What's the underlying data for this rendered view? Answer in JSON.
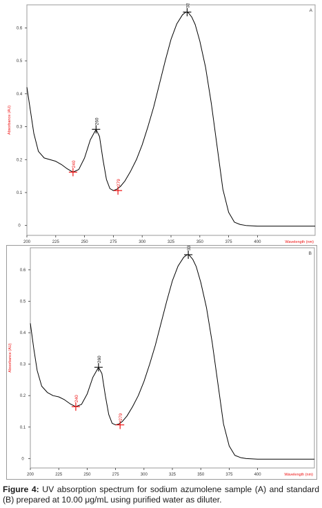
{
  "chart_data": [
    {
      "type": "line",
      "panel_label": "A",
      "xlabel": "Wavelength (nm)",
      "ylabel": "Absorbance (AU)",
      "xlim": [
        200,
        450
      ],
      "ylim": [
        -0.03,
        0.67
      ],
      "x_ticks": [
        200,
        225,
        250,
        275,
        300,
        325,
        350,
        375,
        400
      ],
      "x_tick_labels": [
        "200",
        "225",
        "250",
        "275",
        "300",
        "325",
        "350",
        "375",
        "400"
      ],
      "y_ticks": [
        0,
        0.1,
        0.2,
        0.3,
        0.4,
        0.5,
        0.6
      ],
      "y_tick_labels": [
        "0",
        "0.1",
        "0.2",
        "0.3",
        "0.4",
        "0.5",
        "0.6"
      ],
      "series": [
        {
          "color": "#000000",
          "x": [
            200,
            203,
            206,
            210,
            215,
            220,
            225,
            230,
            235,
            240,
            245,
            250,
            255,
            260,
            263,
            266,
            269,
            272,
            275,
            278,
            281,
            285,
            290,
            295,
            300,
            305,
            310,
            315,
            320,
            325,
            330,
            335,
            338,
            340,
            343,
            346,
            350,
            355,
            360,
            365,
            370,
            375,
            380,
            385,
            390,
            400,
            420,
            450
          ],
          "y": [
            0.42,
            0.35,
            0.28,
            0.225,
            0.205,
            0.2,
            0.195,
            0.185,
            0.172,
            0.162,
            0.17,
            0.205,
            0.26,
            0.292,
            0.27,
            0.2,
            0.14,
            0.112,
            0.106,
            0.11,
            0.118,
            0.135,
            0.165,
            0.2,
            0.245,
            0.3,
            0.36,
            0.43,
            0.5,
            0.565,
            0.612,
            0.64,
            0.648,
            0.646,
            0.633,
            0.61,
            0.56,
            0.48,
            0.37,
            0.24,
            0.11,
            0.04,
            0.01,
            0.003,
            0.0,
            -0.002,
            -0.002,
            -0.002
          ]
        }
      ],
      "peaks": [
        {
          "x": 240,
          "y": 0.162,
          "label": "240",
          "color": "#ee1111"
        },
        {
          "x": 260,
          "y": 0.292,
          "label": "260",
          "color": "#111111"
        },
        {
          "x": 279,
          "y": 0.106,
          "label": "279",
          "color": "#ee1111"
        },
        {
          "x": 339,
          "y": 0.648,
          "label": "339",
          "color": "#111111"
        }
      ]
    },
    {
      "type": "line",
      "panel_label": "B",
      "xlabel": "Wavelength (nm)",
      "ylabel": "Absorbance (AU)",
      "xlim": [
        200,
        450
      ],
      "ylim": [
        -0.03,
        0.67
      ],
      "x_ticks": [
        200,
        225,
        250,
        275,
        300,
        325,
        350,
        375,
        400
      ],
      "x_tick_labels": [
        "200",
        "225",
        "250",
        "275",
        "300",
        "325",
        "350",
        "375",
        "400"
      ],
      "y_ticks": [
        0,
        0.1,
        0.2,
        0.3,
        0.4,
        0.5,
        0.6
      ],
      "y_tick_labels": [
        "0",
        "0.1",
        "0.2",
        "0.3",
        "0.4",
        "0.5",
        "0.6"
      ],
      "series": [
        {
          "color": "#000000",
          "x": [
            200,
            203,
            206,
            210,
            215,
            220,
            225,
            230,
            235,
            240,
            245,
            250,
            255,
            260,
            263,
            266,
            269,
            272,
            275,
            278,
            281,
            285,
            290,
            295,
            300,
            305,
            310,
            315,
            320,
            325,
            330,
            335,
            338,
            340,
            343,
            346,
            350,
            355,
            360,
            365,
            370,
            375,
            380,
            385,
            390,
            400,
            420,
            450
          ],
          "y": [
            0.43,
            0.35,
            0.28,
            0.23,
            0.21,
            0.2,
            0.196,
            0.187,
            0.174,
            0.165,
            0.172,
            0.205,
            0.258,
            0.29,
            0.27,
            0.2,
            0.14,
            0.112,
            0.107,
            0.11,
            0.118,
            0.135,
            0.165,
            0.2,
            0.245,
            0.3,
            0.36,
            0.43,
            0.5,
            0.565,
            0.612,
            0.64,
            0.648,
            0.646,
            0.633,
            0.61,
            0.56,
            0.48,
            0.37,
            0.24,
            0.11,
            0.04,
            0.01,
            0.003,
            0.0,
            -0.002,
            -0.002,
            -0.002
          ]
        }
      ],
      "peaks": [
        {
          "x": 240,
          "y": 0.165,
          "label": "240",
          "color": "#ee1111"
        },
        {
          "x": 260,
          "y": 0.29,
          "label": "260",
          "color": "#111111"
        },
        {
          "x": 279,
          "y": 0.107,
          "label": "279",
          "color": "#ee1111"
        },
        {
          "x": 339,
          "y": 0.648,
          "label": "339",
          "color": "#111111"
        }
      ]
    }
  ],
  "caption": {
    "label": "Figure 4:",
    "text": " UV absorption spectrum for sodium azumolene sample (A) and standard (B) prepared at 10.00 μg/mL using purified water as diluter."
  },
  "colors": {
    "curve": "#000000",
    "axis_label": "#ee1111",
    "marker_red": "#ee1111",
    "marker_black": "#111111",
    "tick": "#333333"
  }
}
